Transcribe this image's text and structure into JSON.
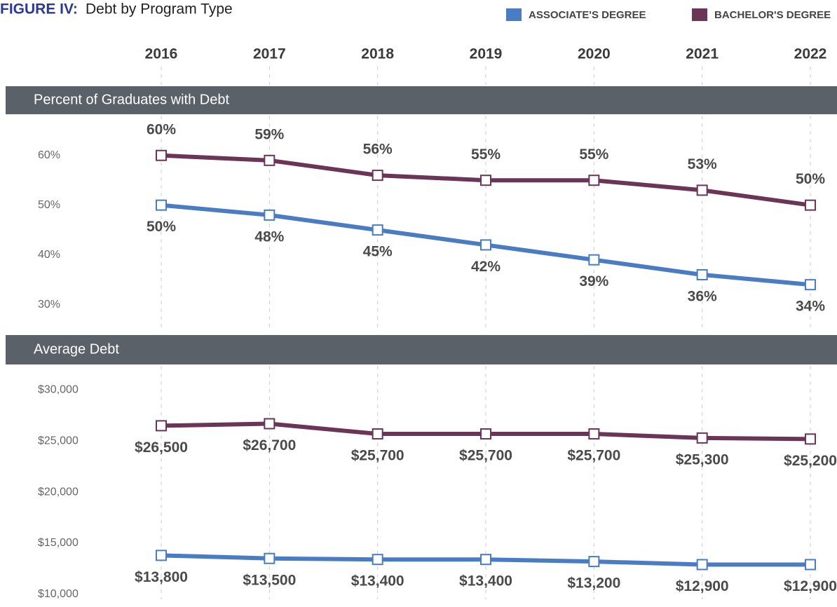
{
  "figure_label": "FIGURE IV:",
  "title": "Debt by Program Type",
  "chart_data": [
    {
      "type": "line",
      "title": "Percent of Graduates with Debt",
      "categories": [
        "2016",
        "2017",
        "2018",
        "2019",
        "2020",
        "2021",
        "2022"
      ],
      "ylim": [
        25,
        68
      ],
      "yticks": [
        {
          "value": 30,
          "label": "30%"
        },
        {
          "value": 40,
          "label": "40%"
        },
        {
          "value": 50,
          "label": "50%"
        },
        {
          "value": 60,
          "label": "60%"
        }
      ],
      "series": [
        {
          "name": "ASSOCIATE'S DEGREE",
          "color": "#4a7cc4",
          "label_position": "below",
          "values": [
            50,
            48,
            45,
            42,
            39,
            36,
            34
          ],
          "value_labels": [
            "50%",
            "48%",
            "45%",
            "42%",
            "39%",
            "36%",
            "34%"
          ]
        },
        {
          "name": "BACHELOR'S DEGREE",
          "color": "#6b3557",
          "label_position": "above",
          "values": [
            60,
            59,
            56,
            55,
            55,
            53,
            50
          ],
          "value_labels": [
            "60%",
            "59%",
            "56%",
            "55%",
            "55%",
            "53%",
            "50%"
          ]
        }
      ]
    },
    {
      "type": "line",
      "title": "Average Debt",
      "ylim": [
        9500,
        32500
      ],
      "yticks": [
        {
          "value": 10000,
          "label": "$10,000"
        },
        {
          "value": 15000,
          "label": "$15,000"
        },
        {
          "value": 20000,
          "label": "$20,000"
        },
        {
          "value": 25000,
          "label": "$25,000"
        },
        {
          "value": 30000,
          "label": "$30,000"
        }
      ],
      "series": [
        {
          "color": "#4a7cc4",
          "label_position": "below",
          "values": [
            13800,
            13500,
            13400,
            13400,
            13200,
            12900,
            12900
          ],
          "value_labels": [
            "$13,800",
            "$13,500",
            "$13,400",
            "$13,400",
            "$13,200",
            "$12,900",
            "$12,900"
          ]
        },
        {
          "color": "#6b3557",
          "label_position": "below",
          "values": [
            26500,
            26700,
            25700,
            25700,
            25700,
            25300,
            25200
          ],
          "value_labels": [
            "$26,500",
            "$26,700",
            "$25,700",
            "$25,700",
            "$25,700",
            "$25,300",
            "$25,200"
          ]
        }
      ]
    }
  ]
}
